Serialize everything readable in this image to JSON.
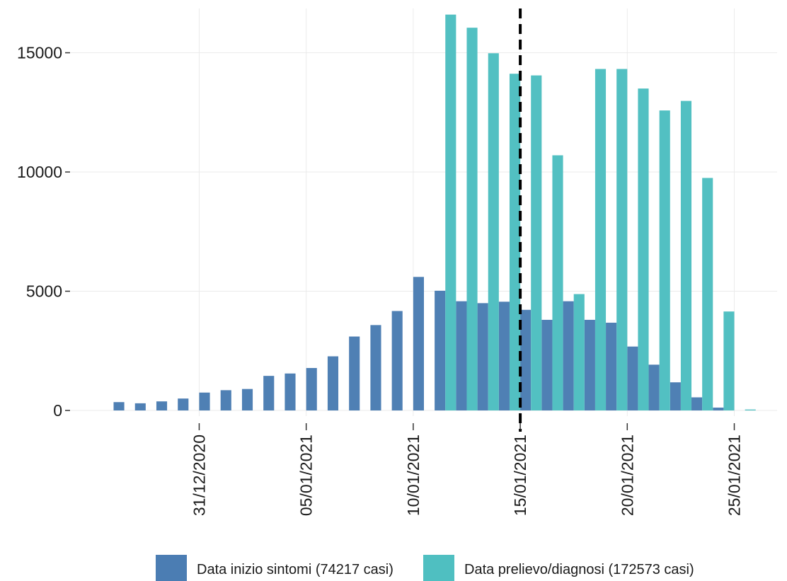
{
  "chart_data": {
    "type": "bar",
    "title": "",
    "xlabel": "",
    "ylabel": "",
    "x_range": [
      "2020-12-25",
      "2021-01-27"
    ],
    "ylim": [
      0,
      16500
    ],
    "y_ticks": [
      0,
      5000,
      10000,
      15000
    ],
    "x_ticks": [
      "2020-12-31",
      "2021-01-05",
      "2021-01-10",
      "2021-01-15",
      "2021-01-20",
      "2021-01-25"
    ],
    "x_tick_labels": [
      "31/12/2020",
      "05/01/2021",
      "10/01/2021",
      "15/01/2021",
      "20/01/2021",
      "25/01/2021"
    ],
    "grid": true,
    "legend_position": "bottom",
    "reference_line": {
      "x": "2021-01-15",
      "style": "dashed",
      "color": "#000000"
    },
    "series": [
      {
        "name": "Data inizio sintomi (74217 casi)",
        "color": "#4b7db3",
        "points": [
          {
            "x": "2020-12-27",
            "y": 350
          },
          {
            "x": "2020-12-28",
            "y": 300
          },
          {
            "x": "2020-12-29",
            "y": 380
          },
          {
            "x": "2020-12-30",
            "y": 500
          },
          {
            "x": "2020-12-31",
            "y": 750
          },
          {
            "x": "2021-01-01",
            "y": 850
          },
          {
            "x": "2021-01-02",
            "y": 900
          },
          {
            "x": "2021-01-03",
            "y": 1450
          },
          {
            "x": "2021-01-04",
            "y": 1550
          },
          {
            "x": "2021-01-05",
            "y": 1780
          },
          {
            "x": "2021-01-06",
            "y": 2270
          },
          {
            "x": "2021-01-07",
            "y": 3100
          },
          {
            "x": "2021-01-08",
            "y": 3580
          },
          {
            "x": "2021-01-09",
            "y": 4170
          },
          {
            "x": "2021-01-10",
            "y": 5600
          },
          {
            "x": "2021-01-11",
            "y": 5020
          },
          {
            "x": "2021-01-12",
            "y": 4580
          },
          {
            "x": "2021-01-13",
            "y": 4500
          },
          {
            "x": "2021-01-14",
            "y": 4560
          },
          {
            "x": "2021-01-15",
            "y": 4220
          },
          {
            "x": "2021-01-16",
            "y": 3800
          },
          {
            "x": "2021-01-17",
            "y": 4580
          },
          {
            "x": "2021-01-18",
            "y": 3800
          },
          {
            "x": "2021-01-19",
            "y": 3680
          },
          {
            "x": "2021-01-20",
            "y": 2680
          },
          {
            "x": "2021-01-21",
            "y": 1920
          },
          {
            "x": "2021-01-22",
            "y": 1180
          },
          {
            "x": "2021-01-23",
            "y": 550
          },
          {
            "x": "2021-01-24",
            "y": 120
          }
        ]
      },
      {
        "name": "Data prelievo/diagnosi (172573 casi)",
        "color": "#4fbfc1",
        "points": [
          {
            "x": "2021-01-11",
            "y": 16600
          },
          {
            "x": "2021-01-12",
            "y": 16050
          },
          {
            "x": "2021-01-13",
            "y": 14980
          },
          {
            "x": "2021-01-14",
            "y": 14120
          },
          {
            "x": "2021-01-15",
            "y": 14050
          },
          {
            "x": "2021-01-16",
            "y": 10700
          },
          {
            "x": "2021-01-17",
            "y": 4880
          },
          {
            "x": "2021-01-18",
            "y": 14320
          },
          {
            "x": "2021-01-19",
            "y": 14320
          },
          {
            "x": "2021-01-20",
            "y": 13500
          },
          {
            "x": "2021-01-21",
            "y": 12580
          },
          {
            "x": "2021-01-22",
            "y": 12980
          },
          {
            "x": "2021-01-23",
            "y": 9750
          },
          {
            "x": "2021-01-24",
            "y": 4150
          },
          {
            "x": "2021-01-25",
            "y": 40
          }
        ]
      }
    ]
  }
}
